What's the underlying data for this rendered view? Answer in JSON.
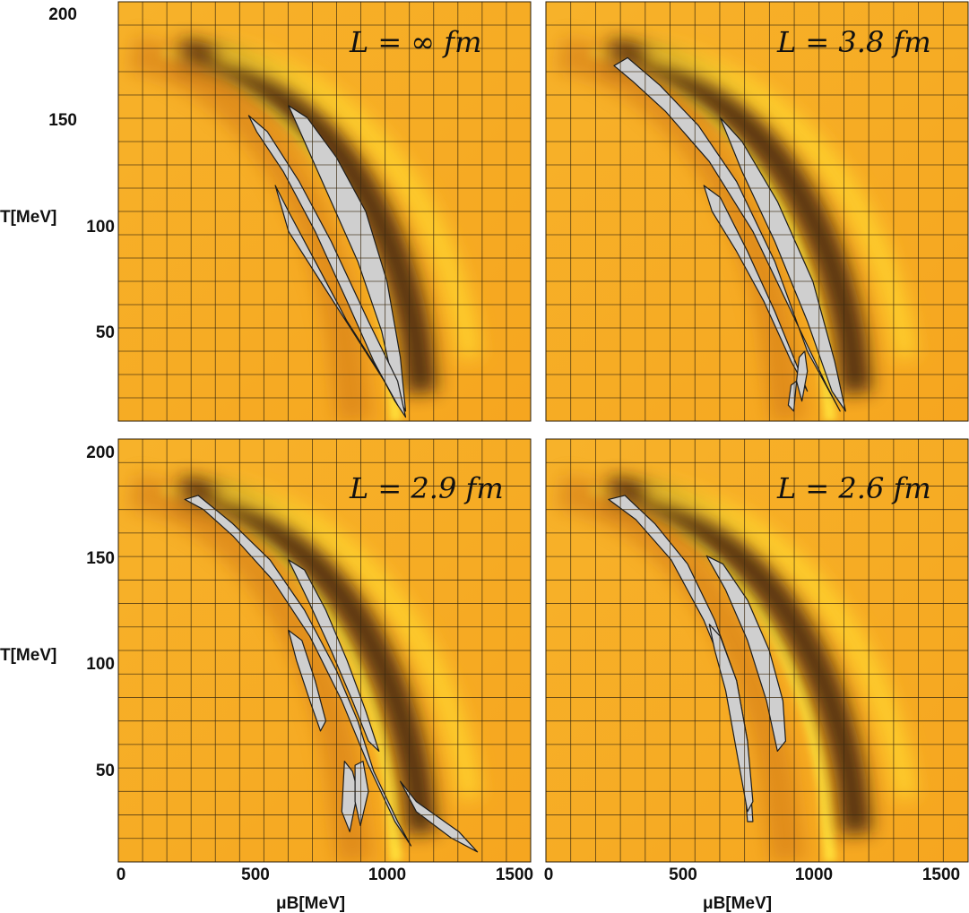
{
  "chart_data": [
    {
      "type": "heatmap",
      "label": "L = ∞ fm",
      "position": "top-left",
      "xlabel": "",
      "ylabel": "T[MeV]",
      "xlim": [
        0,
        1550
      ],
      "ylim": [
        0,
        210
      ],
      "yticks": [
        "200",
        "150",
        "100",
        "50"
      ],
      "xticks": [],
      "grid": true,
      "regions": [
        {
          "kind": "lobe",
          "start": [
            250,
            180
          ],
          "end": [
            1080,
            0
          ],
          "width": 35
        },
        {
          "kind": "island",
          "poly": [
            [
              640,
              158
            ],
            [
              710,
              152
            ],
            [
              820,
              132
            ],
            [
              930,
              105
            ],
            [
              1010,
              70
            ],
            [
              1060,
              32
            ],
            [
              1080,
              5
            ],
            [
              1040,
              15
            ],
            [
              990,
              45
            ],
            [
              900,
              80
            ],
            [
              800,
              110
            ],
            [
              700,
              140
            ]
          ]
        },
        {
          "kind": "island",
          "poly": [
            [
              490,
              153
            ],
            [
              560,
              145
            ],
            [
              680,
              120
            ],
            [
              800,
              90
            ],
            [
              940,
              50
            ],
            [
              1050,
              20
            ],
            [
              1080,
              2
            ],
            [
              1040,
              10
            ],
            [
              960,
              30
            ],
            [
              860,
              60
            ],
            [
              740,
              95
            ],
            [
              620,
              125
            ],
            [
              520,
              145
            ]
          ]
        },
        {
          "kind": "island",
          "poly": [
            [
              590,
              118
            ],
            [
              640,
              105
            ],
            [
              740,
              80
            ],
            [
              860,
              50
            ],
            [
              980,
              25
            ],
            [
              1050,
              8
            ],
            [
              1000,
              20
            ],
            [
              880,
              45
            ],
            [
              760,
              70
            ],
            [
              640,
              95
            ]
          ]
        }
      ]
    },
    {
      "type": "heatmap",
      "label": "L = 3.8 fm",
      "position": "top-right",
      "xlabel": "",
      "ylabel": "",
      "xlim": [
        0,
        1550
      ],
      "ylim": [
        0,
        210
      ],
      "yticks": [],
      "xticks": [],
      "grid": true,
      "regions": [
        {
          "kind": "island",
          "poly": [
            [
              250,
              178
            ],
            [
              300,
              182
            ],
            [
              420,
              168
            ],
            [
              560,
              148
            ],
            [
              700,
              120
            ],
            [
              840,
              80
            ],
            [
              960,
              35
            ],
            [
              1080,
              5
            ],
            [
              1030,
              18
            ],
            [
              900,
              55
            ],
            [
              760,
              95
            ],
            [
              600,
              130
            ],
            [
              440,
              155
            ],
            [
              320,
              170
            ]
          ]
        },
        {
          "kind": "island",
          "poly": [
            [
              640,
              152
            ],
            [
              720,
              140
            ],
            [
              850,
              110
            ],
            [
              980,
              70
            ],
            [
              1060,
              30
            ],
            [
              1100,
              5
            ],
            [
              1050,
              15
            ],
            [
              960,
              50
            ],
            [
              840,
              90
            ],
            [
              720,
              125
            ]
          ]
        },
        {
          "kind": "island",
          "poly": [
            [
              580,
              118
            ],
            [
              640,
              112
            ],
            [
              740,
              85
            ],
            [
              840,
              55
            ],
            [
              930,
              25
            ],
            [
              960,
              15
            ],
            [
              900,
              30
            ],
            [
              800,
              60
            ],
            [
              700,
              85
            ],
            [
              610,
              105
            ]
          ]
        },
        {
          "kind": "island",
          "poly": [
            [
              930,
              32
            ],
            [
              950,
              35
            ],
            [
              960,
              25
            ],
            [
              940,
              10
            ],
            [
              920,
              20
            ]
          ]
        },
        {
          "kind": "island",
          "poly": [
            [
              900,
              18
            ],
            [
              920,
              20
            ],
            [
              910,
              5
            ],
            [
              890,
              8
            ]
          ]
        }
      ]
    },
    {
      "type": "heatmap",
      "label": "L = 2.9 fm",
      "position": "bottom-left",
      "xlabel": "μB[MeV]",
      "ylabel": "T[MeV]",
      "xlim": [
        0,
        1550
      ],
      "ylim": [
        0,
        210
      ],
      "yticks": [
        "200",
        "150",
        "100",
        "50"
      ],
      "xticks": [
        "0",
        "500",
        "1000",
        "1500"
      ],
      "grid": true,
      "regions": [
        {
          "kind": "island",
          "poly": [
            [
              250,
              180
            ],
            [
              300,
              182
            ],
            [
              430,
              168
            ],
            [
              570,
              150
            ],
            [
              700,
              125
            ],
            [
              820,
              95
            ],
            [
              900,
              70
            ],
            [
              960,
              45
            ],
            [
              1050,
              20
            ],
            [
              1100,
              8
            ],
            [
              1040,
              20
            ],
            [
              940,
              48
            ],
            [
              840,
              80
            ],
            [
              720,
              112
            ],
            [
              580,
              140
            ],
            [
              430,
              162
            ],
            [
              320,
              175
            ]
          ]
        },
        {
          "kind": "island",
          "poly": [
            [
              640,
              150
            ],
            [
              700,
              145
            ],
            [
              780,
              125
            ],
            [
              860,
              100
            ],
            [
              930,
              75
            ],
            [
              980,
              55
            ],
            [
              940,
              60
            ],
            [
              880,
              80
            ],
            [
              800,
              105
            ],
            [
              720,
              128
            ]
          ]
        },
        {
          "kind": "island",
          "poly": [
            [
              640,
              115
            ],
            [
              690,
              110
            ],
            [
              740,
              90
            ],
            [
              780,
              70
            ],
            [
              760,
              65
            ],
            [
              720,
              80
            ],
            [
              670,
              100
            ]
          ]
        },
        {
          "kind": "island",
          "poly": [
            [
              850,
              50
            ],
            [
              880,
              45
            ],
            [
              900,
              35
            ],
            [
              870,
              15
            ],
            [
              840,
              25
            ]
          ]
        },
        {
          "kind": "island",
          "poly": [
            [
              890,
              48
            ],
            [
              920,
              50
            ],
            [
              940,
              35
            ],
            [
              910,
              18
            ],
            [
              890,
              30
            ]
          ]
        },
        {
          "kind": "island",
          "poly": [
            [
              1060,
              40
            ],
            [
              1120,
              30
            ],
            [
              1280,
              15
            ],
            [
              1350,
              5
            ],
            [
              1250,
              12
            ],
            [
              1120,
              25
            ]
          ]
        }
      ]
    },
    {
      "type": "heatmap",
      "label": "L = 2.6 fm",
      "position": "bottom-right",
      "xlabel": "μB[MeV]",
      "ylabel": "",
      "xlim": [
        0,
        1550
      ],
      "ylim": [
        0,
        210
      ],
      "yticks": [],
      "xticks": [
        "0",
        "500",
        "1000",
        "1500"
      ],
      "grid": true,
      "regions": [
        {
          "kind": "island",
          "poly": [
            [
              230,
              180
            ],
            [
              290,
              182
            ],
            [
              400,
              168
            ],
            [
              520,
              148
            ],
            [
              620,
              120
            ],
            [
              700,
              90
            ],
            [
              740,
              60
            ],
            [
              760,
              20
            ],
            [
              740,
              20
            ],
            [
              720,
              55
            ],
            [
              670,
              90
            ],
            [
              580,
              120
            ],
            [
              460,
              150
            ],
            [
              330,
              170
            ]
          ]
        },
        {
          "kind": "island",
          "poly": [
            [
              590,
              152
            ],
            [
              650,
              148
            ],
            [
              740,
              130
            ],
            [
              820,
              105
            ],
            [
              870,
              80
            ],
            [
              880,
              60
            ],
            [
              850,
              55
            ],
            [
              810,
              80
            ],
            [
              740,
              110
            ],
            [
              660,
              135
            ]
          ]
        },
        {
          "kind": "island",
          "poly": [
            [
              600,
              118
            ],
            [
              640,
              112
            ],
            [
              700,
              90
            ],
            [
              740,
              60
            ],
            [
              760,
              30
            ],
            [
              740,
              25
            ],
            [
              700,
              55
            ],
            [
              660,
              85
            ],
            [
              620,
              105
            ]
          ]
        }
      ]
    }
  ]
}
